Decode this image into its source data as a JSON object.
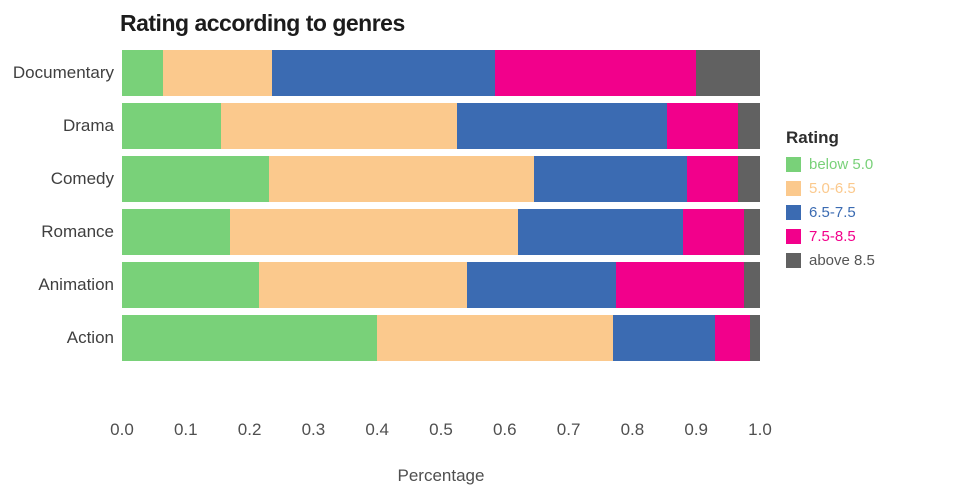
{
  "chart_data": {
    "type": "bar",
    "orientation": "horizontal",
    "stacked": true,
    "title": "Rating according to genres",
    "xlabel": "Percentage",
    "xlim": [
      0,
      1
    ],
    "x_ticks": [
      "0.0",
      "0.1",
      "0.2",
      "0.3",
      "0.4",
      "0.5",
      "0.6",
      "0.7",
      "0.8",
      "0.9",
      "1.0"
    ],
    "grid": false,
    "legend_title": "Rating",
    "legend_position": "right",
    "categories": [
      "Documentary",
      "Drama",
      "Comedy",
      "Romance",
      "Animation",
      "Action"
    ],
    "series": [
      {
        "name": "below 5.0",
        "color": "#79d179",
        "values": [
          0.065,
          0.155,
          0.23,
          0.17,
          0.215,
          0.4
        ]
      },
      {
        "name": "5.0-6.5",
        "color": "#fbc98d",
        "values": [
          0.17,
          0.37,
          0.415,
          0.45,
          0.325,
          0.37
        ]
      },
      {
        "name": "6.5-7.5",
        "color": "#3b6bb2",
        "values": [
          0.35,
          0.33,
          0.24,
          0.26,
          0.235,
          0.16
        ]
      },
      {
        "name": "7.5-8.5",
        "color": "#f2008b",
        "values": [
          0.315,
          0.11,
          0.08,
          0.095,
          0.2,
          0.055
        ]
      },
      {
        "name": "above 8.5",
        "color": "#616161",
        "values": [
          0.1,
          0.035,
          0.035,
          0.025,
          0.025,
          0.015
        ]
      }
    ],
    "legend_label_colors": [
      "#79d179",
      "#fbc98d",
      "#3b6bb2",
      "#f2008b",
      "#555555"
    ]
  }
}
